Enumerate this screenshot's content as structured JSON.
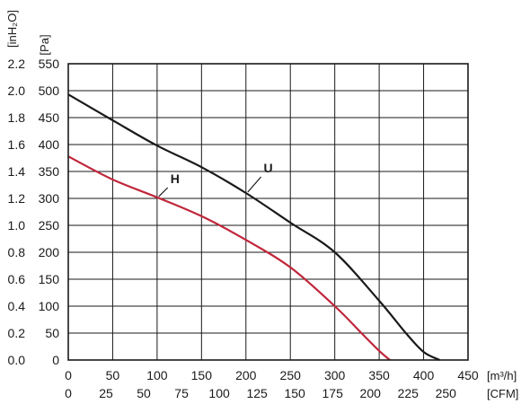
{
  "chart_data": {
    "type": "line",
    "title": "",
    "xlim": [
      0,
      450
    ],
    "ylim": [
      0,
      550
    ],
    "grid": true,
    "x_axis": {
      "unit": "[m³/h]",
      "ticks": [
        "0",
        "50",
        "100",
        "150",
        "200",
        "250",
        "300",
        "350",
        "400",
        "450"
      ]
    },
    "x_axis_secondary": {
      "unit": "[CFM]",
      "ticks": [
        "0",
        "25",
        "50",
        "75",
        "100",
        "125",
        "150",
        "175",
        "200",
        "225",
        "250"
      ],
      "values": [
        0,
        25,
        50,
        75,
        100,
        125,
        150,
        175,
        200,
        225,
        250
      ]
    },
    "y_axis": {
      "unit": "[Pa]",
      "ticks": [
        "0",
        "50",
        "100",
        "150",
        "200",
        "250",
        "300",
        "350",
        "400",
        "450",
        "500",
        "550"
      ]
    },
    "y_axis_secondary": {
      "unit": "[inH₂O]",
      "ticks": [
        "0.0",
        "0.2",
        "0.4",
        "0.6",
        "0.8",
        "1.0",
        "1.2",
        "1.4",
        "1.6",
        "1.8",
        "2.0",
        "2.2"
      ],
      "values": [
        0.0,
        0.2,
        0.4,
        0.6,
        0.8,
        1.0,
        1.2,
        1.4,
        1.6,
        1.8,
        2.0,
        2.2
      ]
    },
    "series": [
      {
        "name": "U",
        "color": "#1a1a1a",
        "x": [
          0,
          50,
          100,
          150,
          200,
          250,
          300,
          350,
          380,
          400,
          418
        ],
        "y": [
          493,
          445,
          398,
          358,
          310,
          255,
          200,
          110,
          50,
          15,
          0
        ]
      },
      {
        "name": "H",
        "color": "#c0263a",
        "x": [
          0,
          50,
          100,
          150,
          200,
          250,
          300,
          330,
          350,
          362
        ],
        "y": [
          378,
          335,
          302,
          267,
          223,
          172,
          100,
          50,
          17,
          0
        ]
      }
    ],
    "curve_labels": [
      {
        "text": "U",
        "x": 220,
        "y": 345,
        "leader_to": [
          200,
          310
        ]
      },
      {
        "text": "H",
        "x": 115,
        "y": 325,
        "leader_to": [
          100,
          302
        ]
      }
    ]
  }
}
